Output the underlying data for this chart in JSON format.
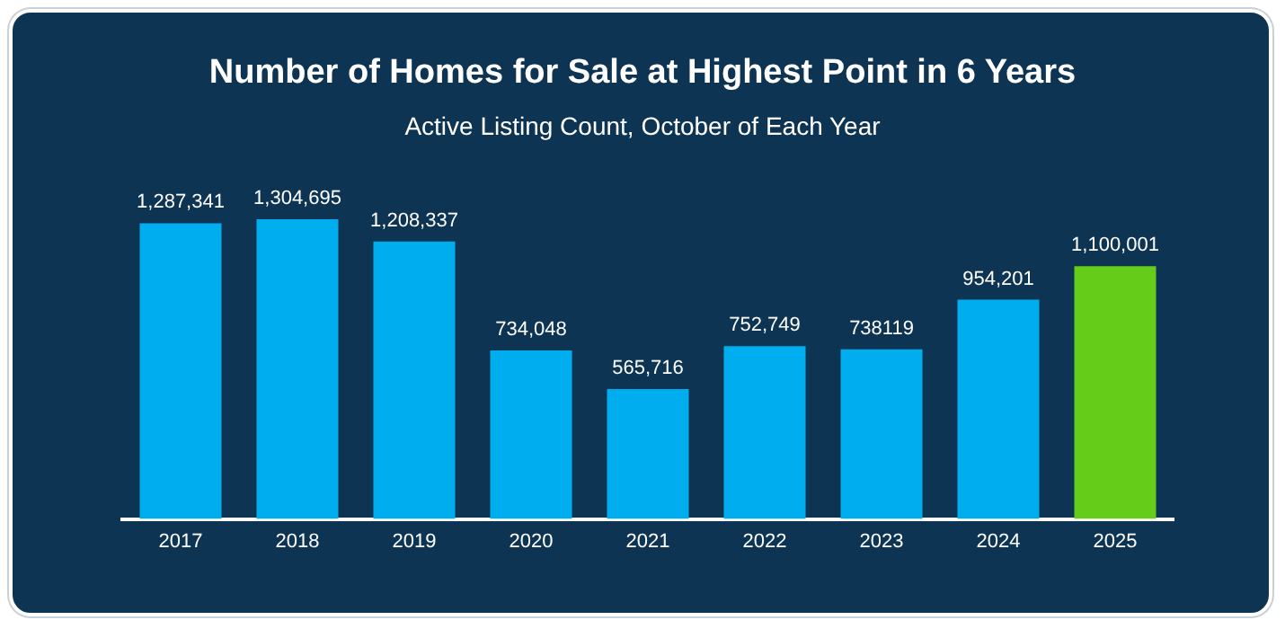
{
  "chart_data": {
    "type": "bar",
    "title": "Number of Homes for Sale at Highest Point in 6 Years",
    "subtitle": "Active Listing Count, October of Each Year",
    "categories": [
      "2017",
      "2018",
      "2019",
      "2020",
      "2021",
      "2022",
      "2023",
      "2024",
      "2025"
    ],
    "values": [
      1287341,
      1304695,
      1208337,
      734048,
      565716,
      752749,
      738119,
      954201,
      1100001
    ],
    "colors": [
      "#00aeef",
      "#00aeef",
      "#00aeef",
      "#00aeef",
      "#00aeef",
      "#00aeef",
      "#00aeef",
      "#00aeef",
      "#66cc1a"
    ],
    "value_labels": [
      "1,287,341",
      "1,304,695",
      "1,208,337",
      "734,048",
      "565,716",
      "752,749",
      "738119",
      "954,201",
      "1,100,001"
    ]
  }
}
